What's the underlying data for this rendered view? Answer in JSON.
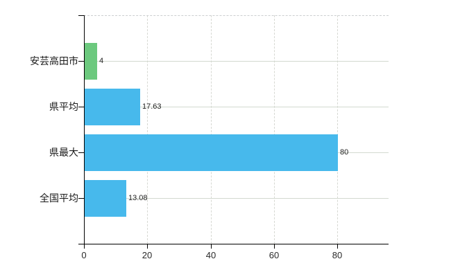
{
  "chart_data": {
    "type": "bar",
    "orientation": "horizontal",
    "title": "",
    "categories": [
      "安芸高田市",
      "県平均",
      "県最大",
      "全国平均"
    ],
    "values": [
      4,
      17.63,
      80,
      13.08
    ],
    "value_labels": [
      "4",
      "17.63",
      "80",
      "13.08"
    ],
    "bar_colors": [
      "#6cc97e",
      "#47b9ec",
      "#47b9ec",
      "#47b9ec"
    ],
    "x_ticks": [
      0,
      20,
      40,
      60,
      80
    ],
    "x_tick_labels": [
      "0",
      "20",
      "40",
      "60",
      "80"
    ],
    "xlim": [
      0,
      96.2
    ],
    "grid": true,
    "legend": false
  },
  "colors": {
    "background": "#ffffff",
    "bar_blue": "#47b9ec",
    "bar_green": "#6cc97e",
    "grid_line": "#d3d9cf",
    "top_dash_line": "#ccced0",
    "axis_line": "#000000",
    "category_text": "#1a1a1a",
    "value_text": "#222222",
    "tick_text": "#2a2a2a"
  }
}
